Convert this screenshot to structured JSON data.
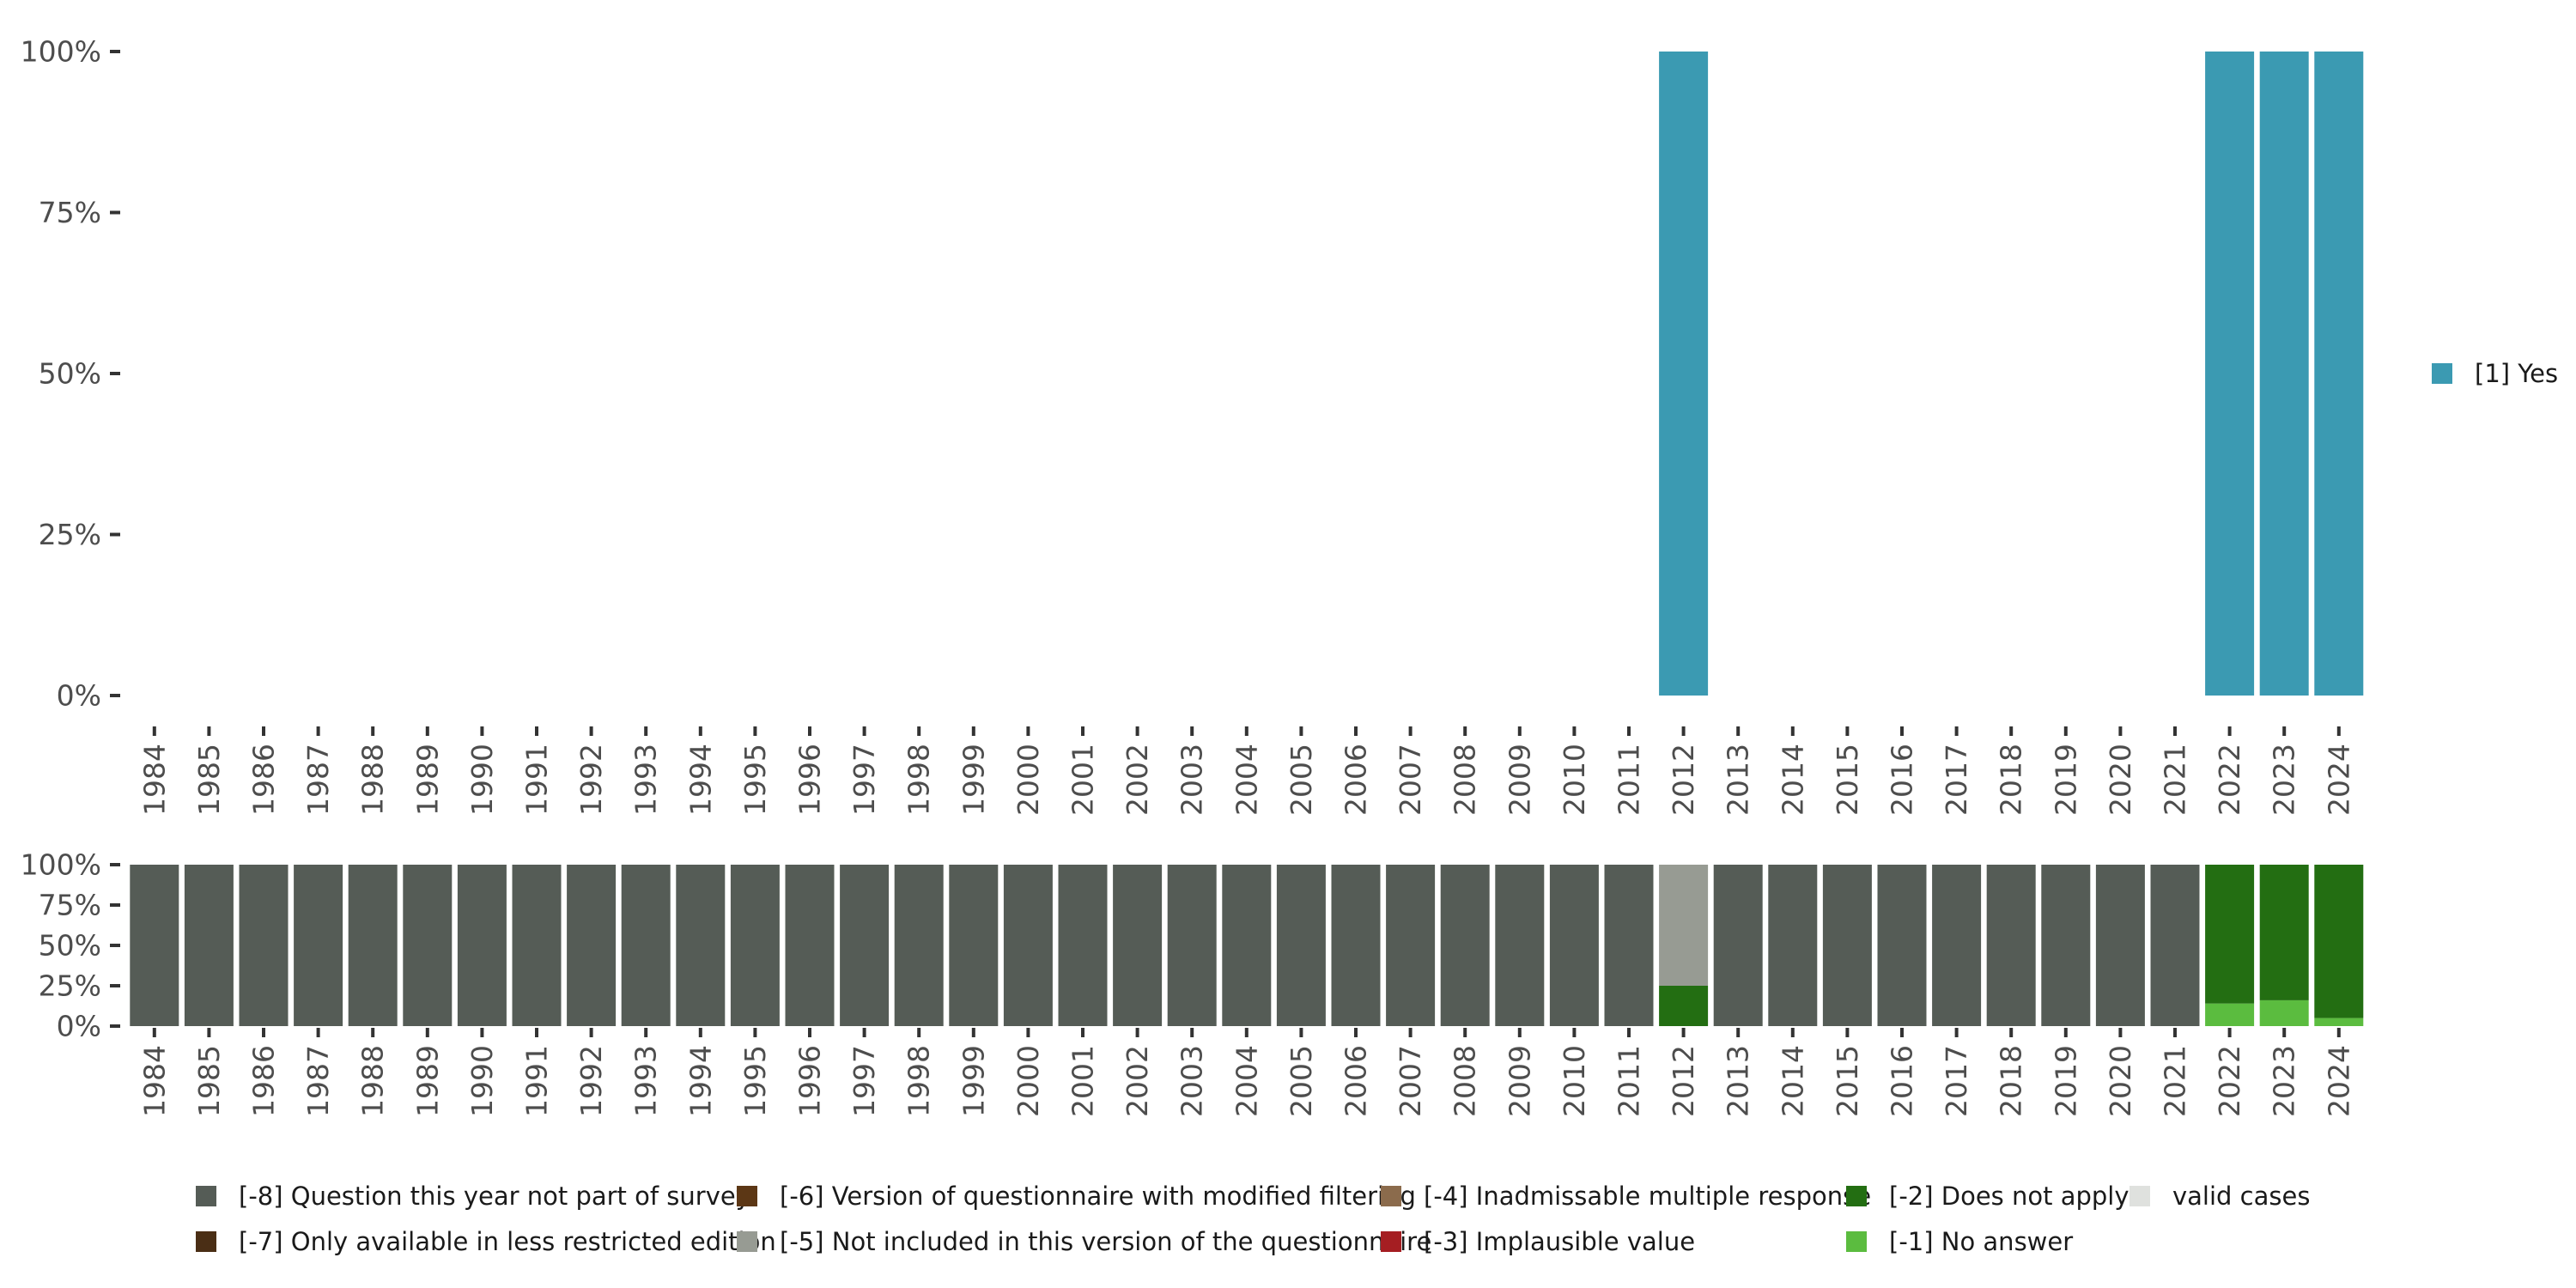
{
  "chart_data": [
    {
      "type": "bar",
      "stacked": true,
      "title": "",
      "xlabel": "",
      "ylabel": "",
      "ylim": [
        0,
        100
      ],
      "yticks": [
        "0%",
        "25%",
        "50%",
        "75%",
        "100%"
      ],
      "categories": [
        "1984",
        "1985",
        "1986",
        "1987",
        "1988",
        "1989",
        "1990",
        "1991",
        "1992",
        "1993",
        "1994",
        "1995",
        "1996",
        "1997",
        "1998",
        "1999",
        "2000",
        "2001",
        "2002",
        "2003",
        "2004",
        "2005",
        "2006",
        "2007",
        "2008",
        "2009",
        "2010",
        "2011",
        "2012",
        "2013",
        "2014",
        "2015",
        "2016",
        "2017",
        "2018",
        "2019",
        "2020",
        "2021",
        "2022",
        "2023",
        "2024"
      ],
      "legend_position": "right",
      "series": [
        {
          "name": "[1] Yes",
          "color": "#3b9ab2",
          "values": [
            0,
            0,
            0,
            0,
            0,
            0,
            0,
            0,
            0,
            0,
            0,
            0,
            0,
            0,
            0,
            0,
            0,
            0,
            0,
            0,
            0,
            0,
            0,
            0,
            0,
            0,
            0,
            0,
            100,
            0,
            0,
            0,
            0,
            0,
            0,
            0,
            0,
            0,
            100,
            100,
            100
          ]
        }
      ]
    },
    {
      "type": "bar",
      "stacked": true,
      "title": "",
      "xlabel": "",
      "ylabel": "",
      "ylim": [
        0,
        100
      ],
      "yticks": [
        "0%",
        "25%",
        "50%",
        "75%",
        "100%"
      ],
      "categories": [
        "1984",
        "1985",
        "1986",
        "1987",
        "1988",
        "1989",
        "1990",
        "1991",
        "1992",
        "1993",
        "1994",
        "1995",
        "1996",
        "1997",
        "1998",
        "1999",
        "2000",
        "2001",
        "2002",
        "2003",
        "2004",
        "2005",
        "2006",
        "2007",
        "2008",
        "2009",
        "2010",
        "2011",
        "2012",
        "2013",
        "2014",
        "2015",
        "2016",
        "2017",
        "2018",
        "2019",
        "2020",
        "2021",
        "2022",
        "2023",
        "2024"
      ],
      "legend_position": "bottom",
      "series": [
        {
          "name": "[-1] No answer",
          "color": "#5bbc3f",
          "values": [
            0,
            0,
            0,
            0,
            0,
            0,
            0,
            0,
            0,
            0,
            0,
            0,
            0,
            0,
            0,
            0,
            0,
            0,
            0,
            0,
            0,
            0,
            0,
            0,
            0,
            0,
            0,
            0,
            0,
            0,
            0,
            0,
            0,
            0,
            0,
            0,
            0,
            0,
            14,
            16,
            5
          ]
        },
        {
          "name": "[-2] Does not apply",
          "color": "#236e12",
          "values": [
            0,
            0,
            0,
            0,
            0,
            0,
            0,
            0,
            0,
            0,
            0,
            0,
            0,
            0,
            0,
            0,
            0,
            0,
            0,
            0,
            0,
            0,
            0,
            0,
            0,
            0,
            0,
            0,
            25,
            0,
            0,
            0,
            0,
            0,
            0,
            0,
            0,
            0,
            86,
            84,
            95
          ]
        },
        {
          "name": "[-3] Implausible value",
          "color": "#a51e22",
          "values": [
            0,
            0,
            0,
            0,
            0,
            0,
            0,
            0,
            0,
            0,
            0,
            0,
            0,
            0,
            0,
            0,
            0,
            0,
            0,
            0,
            0,
            0,
            0,
            0,
            0,
            0,
            0,
            0,
            0,
            0,
            0,
            0,
            0,
            0,
            0,
            0,
            0,
            0,
            0,
            0,
            0
          ]
        },
        {
          "name": "[-4] Inadmissable multiple response",
          "color": "#8b6b4c",
          "values": [
            0,
            0,
            0,
            0,
            0,
            0,
            0,
            0,
            0,
            0,
            0,
            0,
            0,
            0,
            0,
            0,
            0,
            0,
            0,
            0,
            0,
            0,
            0,
            0,
            0,
            0,
            0,
            0,
            0,
            0,
            0,
            0,
            0,
            0,
            0,
            0,
            0,
            0,
            0,
            0,
            0
          ]
        },
        {
          "name": "[-5] Not included in this version of the questionnaire",
          "color": "#979b93",
          "values": [
            0,
            0,
            0,
            0,
            0,
            0,
            0,
            0,
            0,
            0,
            0,
            0,
            0,
            0,
            0,
            0,
            0,
            0,
            0,
            0,
            0,
            0,
            0,
            0,
            0,
            0,
            0,
            0,
            75,
            0,
            0,
            0,
            0,
            0,
            0,
            0,
            0,
            0,
            0,
            0,
            0
          ]
        },
        {
          "name": "[-6] Version of questionnaire with modified filtering",
          "color": "#5c3715",
          "values": [
            0,
            0,
            0,
            0,
            0,
            0,
            0,
            0,
            0,
            0,
            0,
            0,
            0,
            0,
            0,
            0,
            0,
            0,
            0,
            0,
            0,
            0,
            0,
            0,
            0,
            0,
            0,
            0,
            0,
            0,
            0,
            0,
            0,
            0,
            0,
            0,
            0,
            0,
            0,
            0,
            0
          ]
        },
        {
          "name": "[-7] Only available in less restricted edition",
          "color": "#4a2e15",
          "values": [
            0,
            0,
            0,
            0,
            0,
            0,
            0,
            0,
            0,
            0,
            0,
            0,
            0,
            0,
            0,
            0,
            0,
            0,
            0,
            0,
            0,
            0,
            0,
            0,
            0,
            0,
            0,
            0,
            0,
            0,
            0,
            0,
            0,
            0,
            0,
            0,
            0,
            0,
            0,
            0,
            0
          ]
        },
        {
          "name": "[-8] Question this year not part of survey",
          "color": "#555c56",
          "values": [
            100,
            100,
            100,
            100,
            100,
            100,
            100,
            100,
            100,
            100,
            100,
            100,
            100,
            100,
            100,
            100,
            100,
            100,
            100,
            100,
            100,
            100,
            100,
            100,
            100,
            100,
            100,
            100,
            0,
            100,
            100,
            100,
            100,
            100,
            100,
            100,
            100,
            100,
            0,
            0,
            0
          ]
        },
        {
          "name": "valid cases",
          "color": "#dfe1de",
          "values": [
            0,
            0,
            0,
            0,
            0,
            0,
            0,
            0,
            0,
            0,
            0,
            0,
            0,
            0,
            0,
            0,
            0,
            0,
            0,
            0,
            0,
            0,
            0,
            0,
            0,
            0,
            0,
            0,
            0,
            0,
            0,
            0,
            0,
            0,
            0,
            0,
            0,
            0,
            0,
            0,
            0
          ]
        }
      ],
      "legend_rows": [
        [
          "[-8] Question this year not part of survey",
          "[-6] Version of questionnaire with modified filtering",
          "[-4] Inadmissable multiple response",
          "[-2] Does not apply",
          "valid cases"
        ],
        [
          "[-7] Only available in less restricted edition",
          "[-5] Not included in this version of the questionnaire",
          "[-3] Implausible value",
          "[-1] No answer"
        ]
      ]
    }
  ]
}
